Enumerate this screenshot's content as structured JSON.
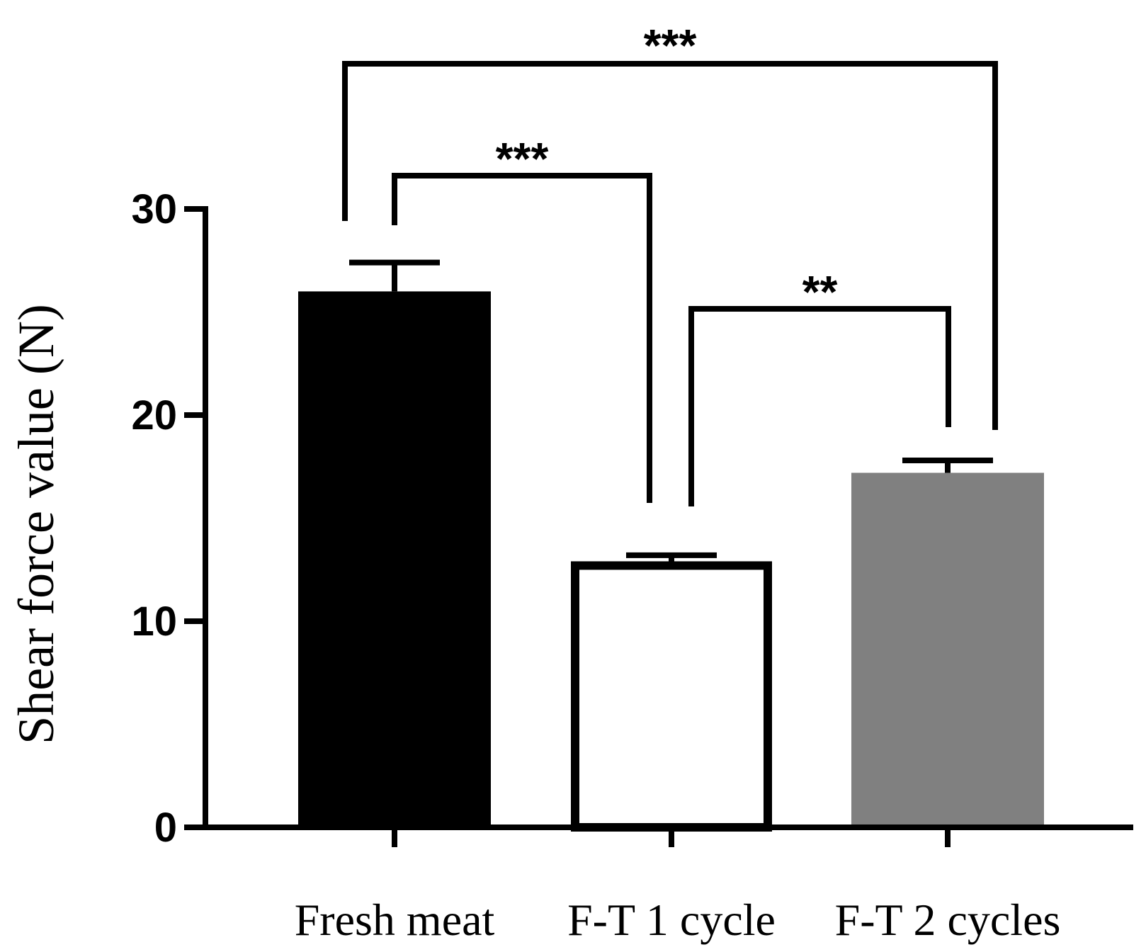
{
  "chart_data": {
    "type": "bar",
    "title": "",
    "xlabel": "",
    "ylabel": "Shear force value (N)",
    "categories": [
      "Fresh meat",
      "F-T 1 cycle",
      "F-T 2 cycles"
    ],
    "values": [
      26.0,
      12.7,
      17.2
    ],
    "errors": [
      1.4,
      0.5,
      0.6
    ],
    "colors": [
      "#000000",
      "#ffffff",
      "#808080"
    ],
    "ylim": [
      0,
      30
    ],
    "yticks": [
      0,
      10,
      20,
      30
    ],
    "grid": false,
    "significance": [
      {
        "from": 0,
        "to": 1,
        "label": "***"
      },
      {
        "from": 1,
        "to": 2,
        "label": "**"
      },
      {
        "from": 0,
        "to": 2,
        "label": "***"
      }
    ]
  }
}
